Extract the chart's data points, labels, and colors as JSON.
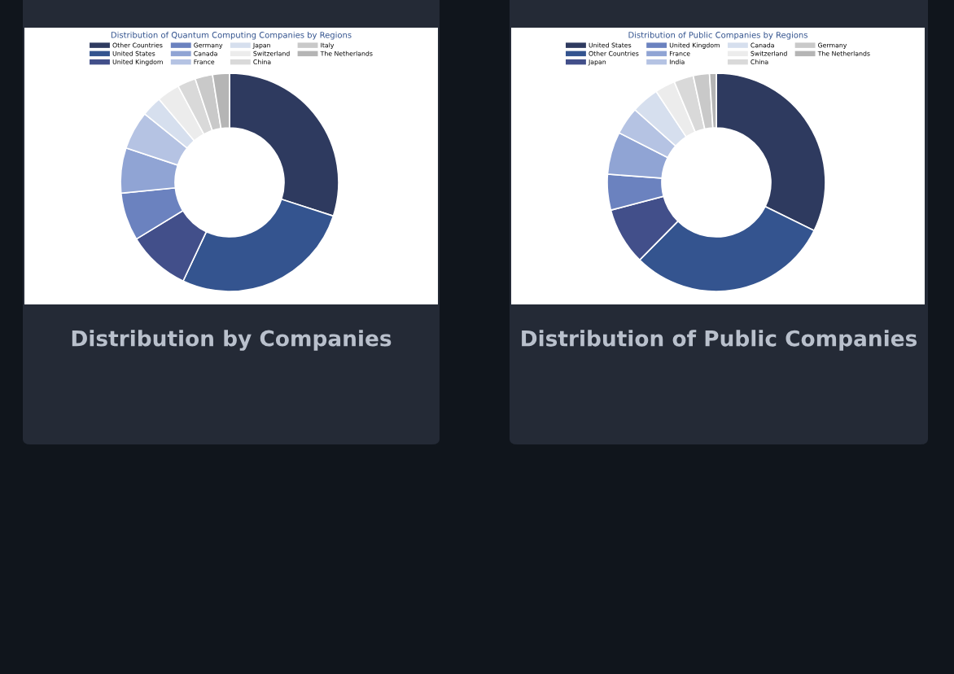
{
  "chart_data": [
    {
      "type": "donut",
      "title": "Distribution of Quantum Computing Companies by Regions",
      "legend": "top",
      "annotations": [
        "Distribution by Companies"
      ],
      "categories": [
        "Other Countries",
        "United States",
        "United Kingdom",
        "Germany",
        "Canada",
        "France",
        "Japan",
        "Switzerland",
        "China",
        "Italy",
        "The Netherlands"
      ],
      "values": [
        30,
        27,
        9.3,
        7.1,
        6.7,
        5.7,
        3,
        3.4,
        2.7,
        2.6,
        2.5
      ],
      "colors": [
        "#2e3a5f",
        "#34548f",
        "#424f8a",
        "#6b82bf",
        "#90a4d4",
        "#b5c3e3",
        "#d6dfee",
        "#ececec",
        "#d9d9d9",
        "#c9c9c9",
        "#b5b5b5"
      ]
    },
    {
      "type": "donut",
      "title": "Distribution of Public Companies by Regions",
      "legend": "top",
      "annotations": [
        "Distribution of Public Companies"
      ],
      "categories": [
        "United States",
        "Other Countries",
        "Japan",
        "United Kingdom",
        "France",
        "India",
        "Canada",
        "Switzerland",
        "China",
        "Germany",
        "The Netherlands"
      ],
      "values": [
        32.3,
        30.1,
        8.5,
        5.3,
        6.3,
        4.1,
        4.1,
        3,
        2.9,
        2.4,
        1
      ],
      "colors": [
        "#2e3a5f",
        "#34548f",
        "#424f8a",
        "#6b82bf",
        "#90a4d4",
        "#b5c3e3",
        "#d6dfee",
        "#ececec",
        "#d9d9d9",
        "#c9c9c9",
        "#b5b5b5"
      ]
    }
  ]
}
